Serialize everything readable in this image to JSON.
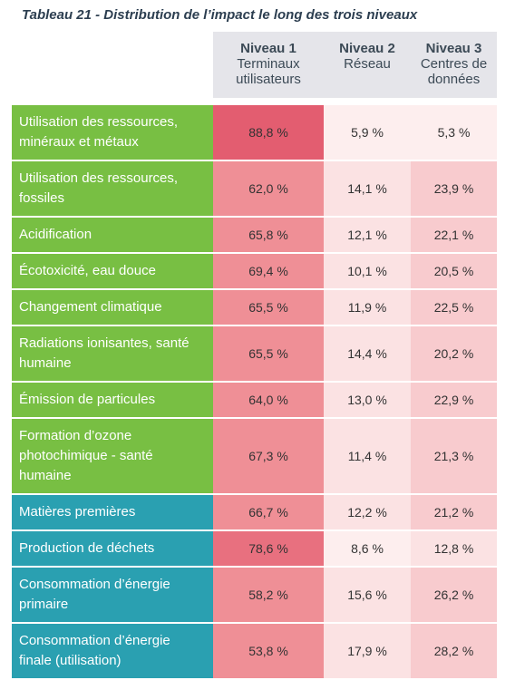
{
  "title": "Tableau 21 - Distribution de l’impact le long des trois niveaux",
  "table": {
    "columns": [
      {
        "title": "Niveau 1",
        "subtitle": "Terminaux utilisateurs"
      },
      {
        "title": "Niveau 2",
        "subtitle": "Réseau"
      },
      {
        "title": "Niveau 3",
        "subtitle": "Centres de données"
      }
    ],
    "rows": [
      {
        "label": "Utilisation des ressources, minéraux et métaux",
        "color": "#78bf43",
        "cells": [
          "88,8 %",
          "5,9 %",
          "5,3 %"
        ],
        "cell_colors": [
          "#e35d70",
          "#fdeeee",
          "#fdeeee"
        ]
      },
      {
        "label": "Utilisation des ressources, fossiles",
        "color": "#78bf43",
        "cells": [
          "62,0 %",
          "14,1 %",
          "23,9 %"
        ],
        "cell_colors": [
          "#ef8f96",
          "#fbe2e3",
          "#f8cbce"
        ]
      },
      {
        "label": "Acidification",
        "color": "#78bf43",
        "cells": [
          "65,8 %",
          "12,1 %",
          "22,1 %"
        ],
        "cell_colors": [
          "#ef8f96",
          "#fbe2e3",
          "#f8cbce"
        ]
      },
      {
        "label": "Écotoxicité, eau douce",
        "color": "#78bf43",
        "cells": [
          "69,4 %",
          "10,1 %",
          "20,5 %"
        ],
        "cell_colors": [
          "#ef8f96",
          "#fbe2e3",
          "#f8cbce"
        ]
      },
      {
        "label": "Changement climatique",
        "color": "#78bf43",
        "cells": [
          "65,5 %",
          "11,9 %",
          "22,5 %"
        ],
        "cell_colors": [
          "#ef8f96",
          "#fbe2e3",
          "#f8cbce"
        ]
      },
      {
        "label": "Radiations ionisantes, santé humaine",
        "color": "#78bf43",
        "cells": [
          "65,5 %",
          "14,4 %",
          "20,2 %"
        ],
        "cell_colors": [
          "#ef8f96",
          "#fbe2e3",
          "#f8cbce"
        ]
      },
      {
        "label": "Émission de particules",
        "color": "#78bf43",
        "cells": [
          "64,0 %",
          "13,0 %",
          "22,9 %"
        ],
        "cell_colors": [
          "#ef8f96",
          "#fbe2e3",
          "#f8cbce"
        ]
      },
      {
        "label": "Formation d’ozone photochimique - santé humaine",
        "color": "#78bf43",
        "cells": [
          "67,3 %",
          "11,4 %",
          "21,3 %"
        ],
        "cell_colors": [
          "#ef8f96",
          "#fbe2e3",
          "#f8cbce"
        ]
      },
      {
        "label": "Matières premières",
        "color": "#2aa0b1",
        "cells": [
          "66,7 %",
          "12,2 %",
          "21,2 %"
        ],
        "cell_colors": [
          "#ef8f96",
          "#fbe2e3",
          "#f8cbce"
        ]
      },
      {
        "label": "Production de déchets",
        "color": "#2aa0b1",
        "cells": [
          "78,6 %",
          "8,6 %",
          "12,8 %"
        ],
        "cell_colors": [
          "#e8707f",
          "#fdeeee",
          "#fbe2e3"
        ]
      },
      {
        "label": "Consommation d’énergie primaire",
        "color": "#2aa0b1",
        "cells": [
          "58,2 %",
          "15,6 %",
          "26,2 %"
        ],
        "cell_colors": [
          "#ef8f96",
          "#fbe2e3",
          "#f8cbce"
        ]
      },
      {
        "label": "Consommation d’énergie finale (utilisation)",
        "color": "#2aa0b1",
        "cells": [
          "53,8 %",
          "17,9 %",
          "28,2 %"
        ],
        "cell_colors": [
          "#ef8f96",
          "#fbe2e3",
          "#f8cbce"
        ]
      }
    ]
  }
}
